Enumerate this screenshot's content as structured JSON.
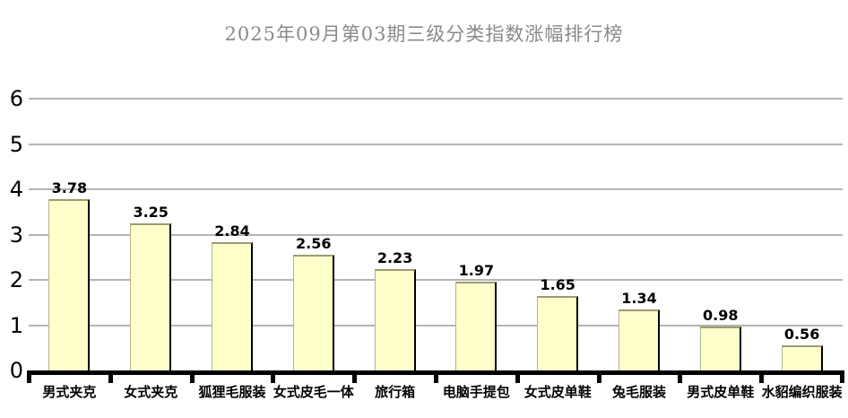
{
  "chart_data": {
    "type": "bar",
    "title": "2025年09月第03期三级分类指数涨幅排行榜",
    "categories": [
      "男式夹克",
      "女式夹克",
      "狐狸毛服装",
      "女式皮毛一体",
      "旅行箱",
      "电脑手提包",
      "女式皮单鞋",
      "兔毛服装",
      "男式皮单鞋",
      "水貂编织服装"
    ],
    "values": [
      3.78,
      3.25,
      2.84,
      2.56,
      2.23,
      1.97,
      1.65,
      1.34,
      0.98,
      0.56
    ],
    "value_labels": [
      "3.78",
      "3.25",
      "2.84",
      "2.56",
      "2.23",
      "1.97",
      "1.65",
      "1.34",
      "0.98",
      "0.56"
    ],
    "xlabel": "",
    "ylabel": "",
    "ylim": [
      0,
      6
    ],
    "yticks": [
      0,
      1,
      2,
      3,
      4,
      5,
      6
    ],
    "grid": "horizontal",
    "legend": "none"
  },
  "colors": {
    "background": "#FFFFFF",
    "bar_fill": "#FFFFCC",
    "bar_border": "#9C9C72",
    "bar_shadow": "#000000",
    "gridline": "#B4B4B4",
    "axis_line": "#000000",
    "title_text": "#8A8A8A",
    "label_text": "#000000"
  }
}
